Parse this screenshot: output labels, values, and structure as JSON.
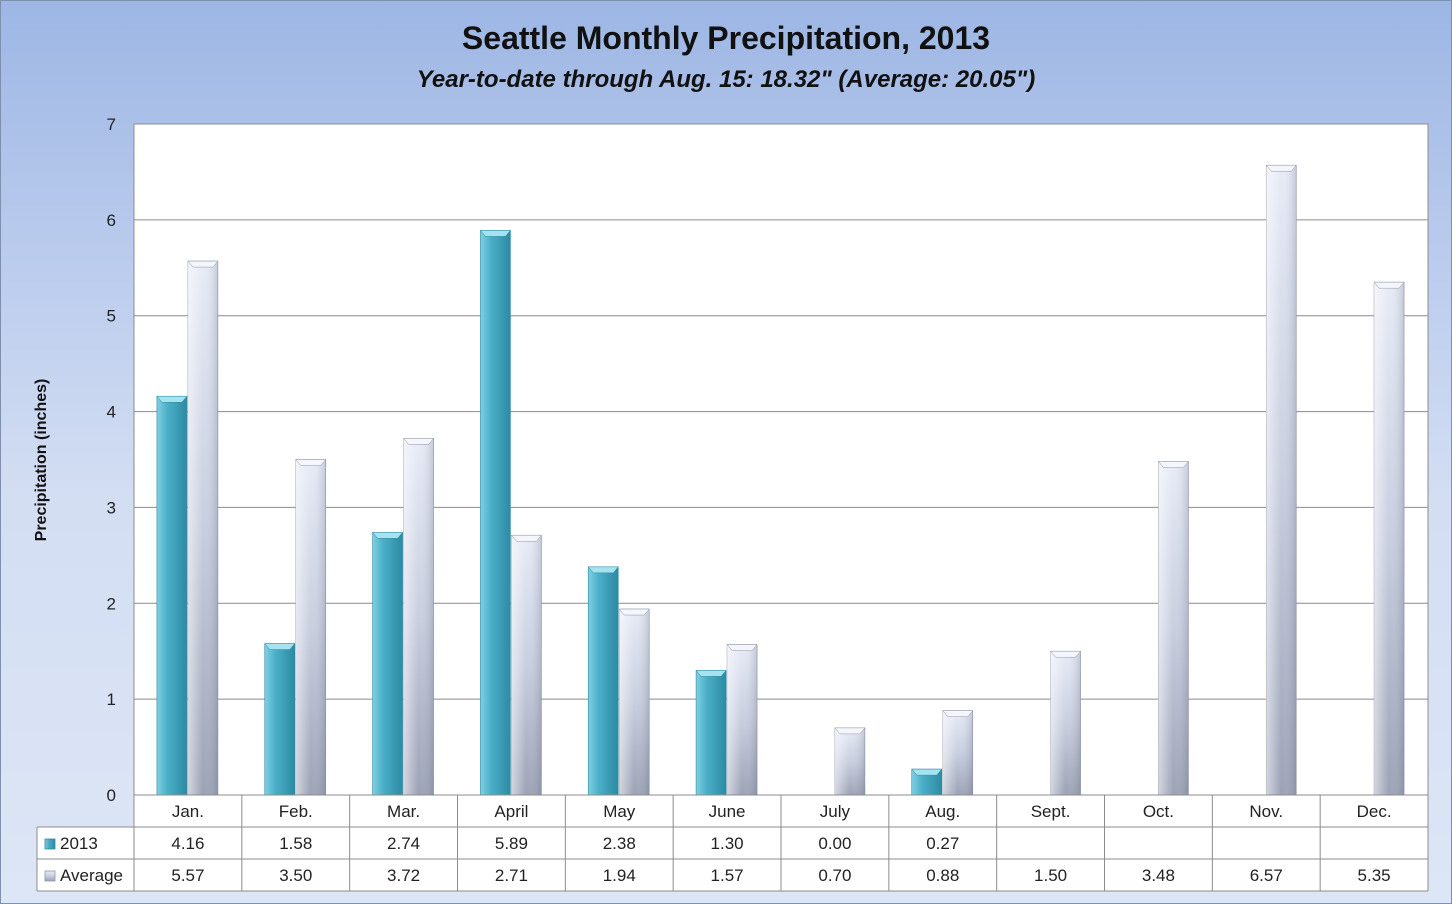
{
  "chart_data": {
    "type": "bar",
    "title": "Seattle Monthly Precipitation, 2013",
    "subtitle": "Year-to-date through Aug. 15: 18.32\" (Average: 20.05\")",
    "ylabel": "Precipitation (inches)",
    "xlabel": "",
    "ylim": [
      0,
      7
    ],
    "yticks": [
      0,
      1,
      2,
      3,
      4,
      5,
      6,
      7
    ],
    "grid": true,
    "legend": "data-table",
    "categories": [
      "Jan.",
      "Feb.",
      "Mar.",
      "April",
      "May",
      "June",
      "July",
      "Aug.",
      "Sept.",
      "Oct.",
      "Nov.",
      "Dec."
    ],
    "series": [
      {
        "name": "2013",
        "color": "#4bacc6",
        "values": [
          4.16,
          1.58,
          2.74,
          5.89,
          2.38,
          1.3,
          0.0,
          0.27,
          null,
          null,
          null,
          null
        ],
        "labels": [
          "4.16",
          "1.58",
          "2.74",
          "5.89",
          "2.38",
          "1.30",
          "0.00",
          "0.27",
          "",
          "",
          "",
          ""
        ]
      },
      {
        "name": "Average",
        "color": "#c9cfe0",
        "values": [
          5.57,
          3.5,
          3.72,
          2.71,
          1.94,
          1.57,
          0.7,
          0.88,
          1.5,
          3.48,
          6.57,
          5.35
        ],
        "labels": [
          "5.57",
          "3.50",
          "3.72",
          "2.71",
          "1.94",
          "1.57",
          "0.70",
          "0.88",
          "1.50",
          "3.48",
          "6.57",
          "5.35"
        ]
      }
    ]
  }
}
